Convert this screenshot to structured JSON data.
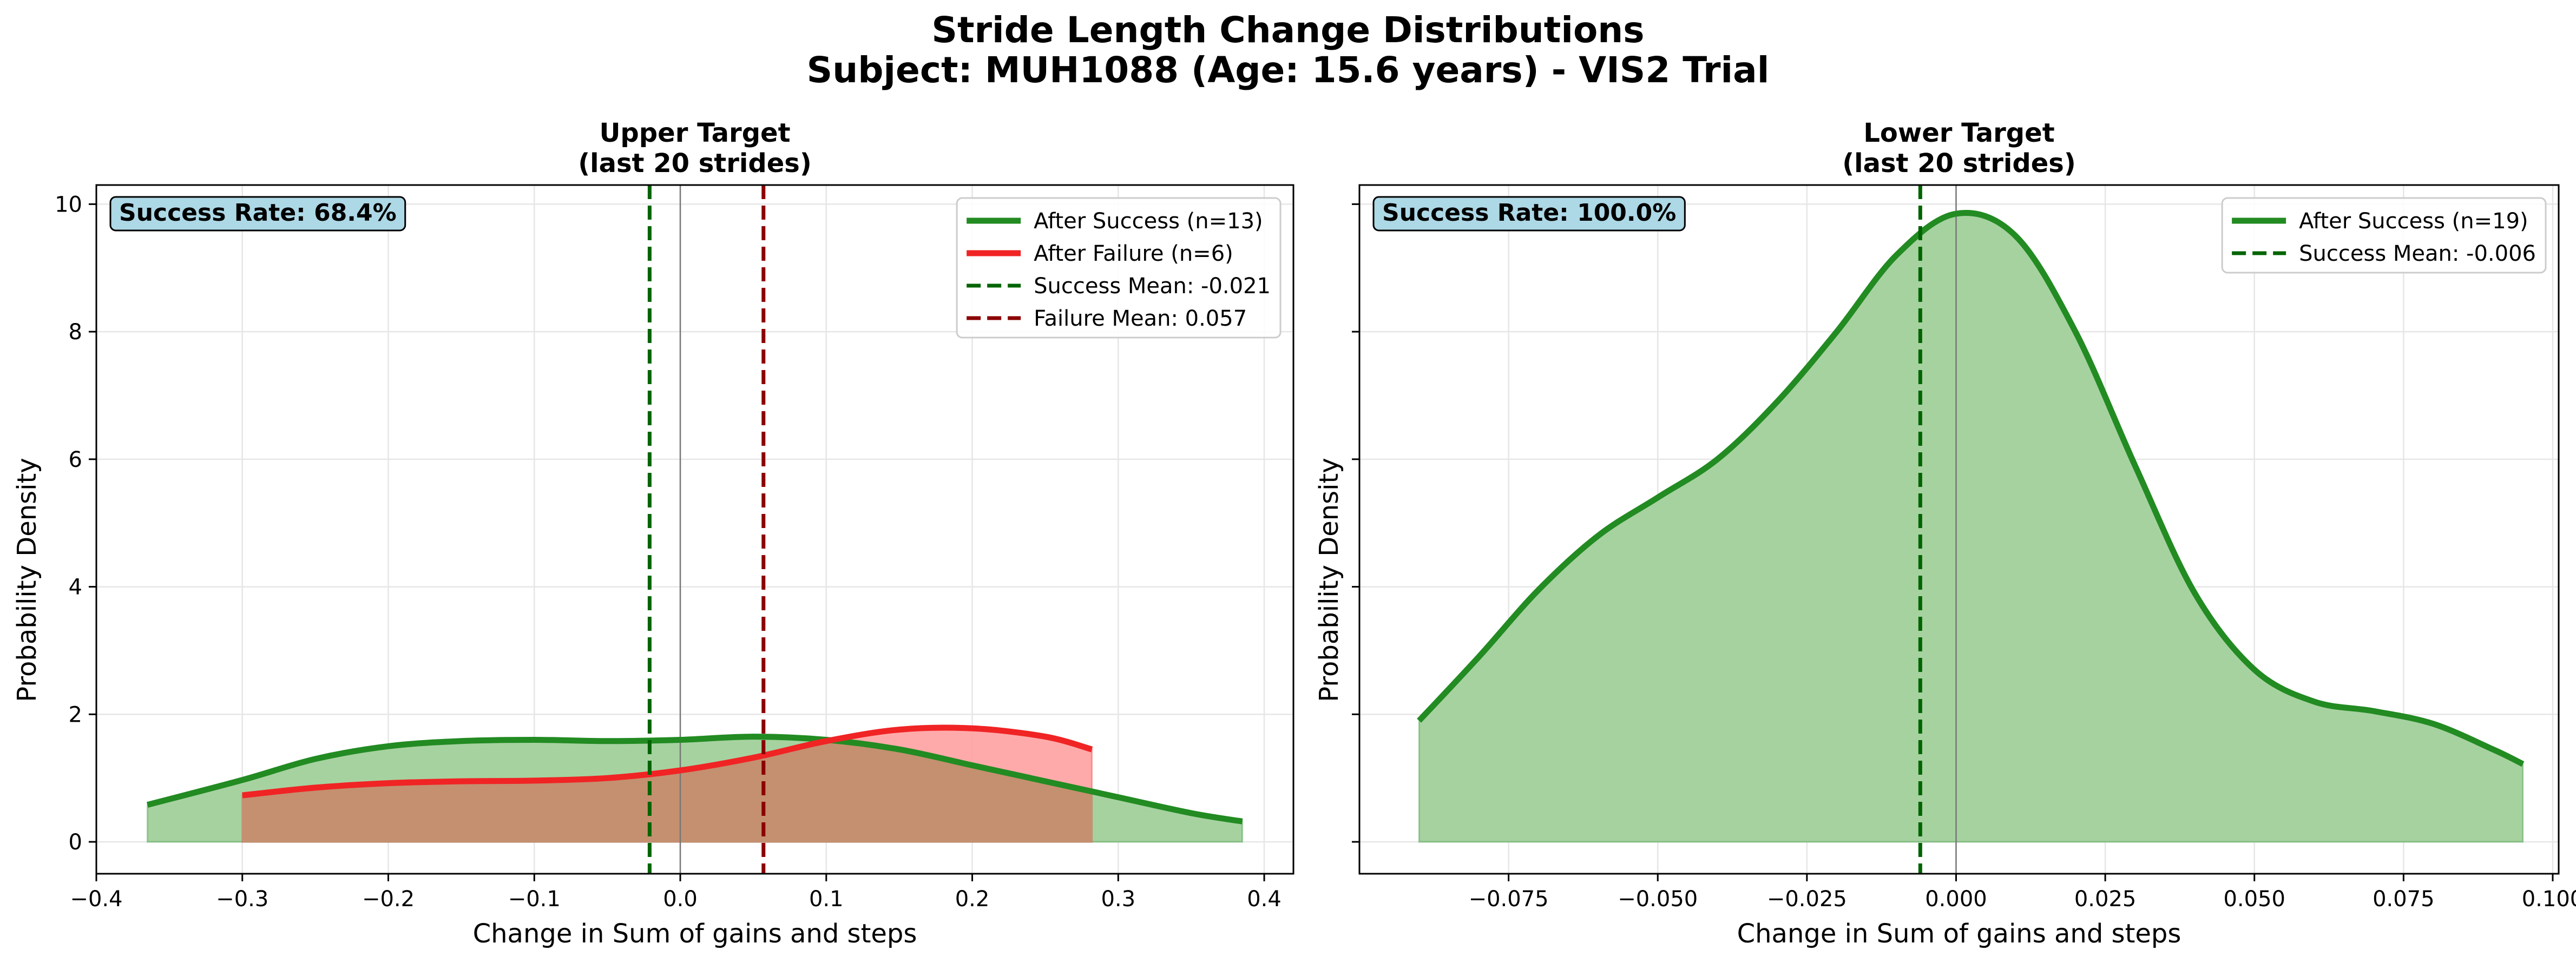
{
  "figure": {
    "title_line1": "Stride Length Change Distributions",
    "title_line2": "Subject: MUH1088 (Age: 15.6 years) - VIS2 Trial"
  },
  "colors": {
    "success_line": "#228B22",
    "success_fill": "#a6d2a0",
    "failure_line": "#f02424",
    "failure_fill": "#ff9b9b",
    "overlap_fill": "#c49070",
    "success_mean": "#006400",
    "failure_mean": "#8B0000",
    "badge_bg": "#ADD8E6",
    "grid": "#e6e6e6"
  },
  "chart_data": [
    {
      "type": "area",
      "title_line1": "Upper Target",
      "title_line2": "(last 20 strides)",
      "xlabel": "Change in Sum of gains and steps",
      "ylabel": "Probability Density",
      "xlim": [
        -0.4,
        0.42
      ],
      "ylim": [
        -0.5,
        10.3
      ],
      "xticks": [
        -0.4,
        -0.3,
        -0.2,
        -0.1,
        0.0,
        0.1,
        0.2,
        0.3,
        0.4
      ],
      "xtick_labels": [
        "−0.4",
        "−0.3",
        "−0.2",
        "−0.1",
        "0.0",
        "0.1",
        "0.2",
        "0.3",
        "0.4"
      ],
      "yticks": [
        0,
        2,
        4,
        6,
        8,
        10
      ],
      "ytick_labels": [
        "0",
        "2",
        "4",
        "6",
        "8",
        "10"
      ],
      "grid": true,
      "legend_position": "top-right",
      "badge": "Success Rate: 68.4%",
      "series": [
        {
          "name": "After Success (n=13)",
          "color": "#228B22",
          "fill": "#a6d2a0",
          "x": [
            -0.365,
            -0.3,
            -0.25,
            -0.2,
            -0.15,
            -0.1,
            -0.05,
            0.0,
            0.05,
            0.1,
            0.15,
            0.2,
            0.25,
            0.3,
            0.35,
            0.385
          ],
          "y": [
            0.58,
            0.97,
            1.3,
            1.5,
            1.58,
            1.6,
            1.58,
            1.6,
            1.65,
            1.6,
            1.45,
            1.2,
            0.95,
            0.7,
            0.45,
            0.32
          ]
        },
        {
          "name": "After Failure (n=6)",
          "color": "#f02424",
          "fill": "#ff9b9b",
          "x": [
            -0.3,
            -0.25,
            -0.2,
            -0.15,
            -0.1,
            -0.05,
            0.0,
            0.05,
            0.1,
            0.15,
            0.2,
            0.25,
            0.282
          ],
          "y": [
            0.73,
            0.85,
            0.92,
            0.95,
            0.96,
            1.0,
            1.12,
            1.32,
            1.58,
            1.76,
            1.78,
            1.65,
            1.45
          ]
        }
      ],
      "mean_lines": [
        {
          "name": "Success Mean: -0.021",
          "x": -0.021,
          "color": "#006400"
        },
        {
          "name": "Failure Mean: 0.057",
          "x": 0.057,
          "color": "#8B0000"
        }
      ]
    },
    {
      "type": "area",
      "title_line1": "Lower Target",
      "title_line2": "(last 20 strides)",
      "xlabel": "Change in Sum of gains and steps",
      "ylabel": "Probability Density",
      "xlim": [
        -0.1,
        0.101
      ],
      "ylim": [
        -0.5,
        10.3
      ],
      "xticks": [
        -0.075,
        -0.05,
        -0.025,
        0.0,
        0.025,
        0.05,
        0.075,
        0.1
      ],
      "xtick_labels": [
        "−0.075",
        "−0.050",
        "−0.025",
        "0.000",
        "0.025",
        "0.050",
        "0.075",
        "0.100"
      ],
      "yticks": [
        0,
        2,
        4,
        6,
        8,
        10
      ],
      "ytick_labels": [],
      "grid": true,
      "legend_position": "top-right",
      "badge": "Success Rate: 100.0%",
      "series": [
        {
          "name": "After Success (n=19)",
          "color": "#228B22",
          "fill": "#a6d2a0",
          "x": [
            -0.09,
            -0.08,
            -0.07,
            -0.06,
            -0.05,
            -0.04,
            -0.03,
            -0.02,
            -0.01,
            0.0,
            0.01,
            0.02,
            0.03,
            0.04,
            0.05,
            0.06,
            0.07,
            0.08,
            0.09,
            0.095
          ],
          "y": [
            1.9,
            2.9,
            3.95,
            4.8,
            5.4,
            6.0,
            6.9,
            8.0,
            9.2,
            9.85,
            9.5,
            8.0,
            5.9,
            3.9,
            2.7,
            2.2,
            2.05,
            1.85,
            1.45,
            1.22
          ]
        }
      ],
      "mean_lines": [
        {
          "name": "Success Mean: -0.006",
          "x": -0.006,
          "color": "#006400"
        }
      ]
    }
  ]
}
